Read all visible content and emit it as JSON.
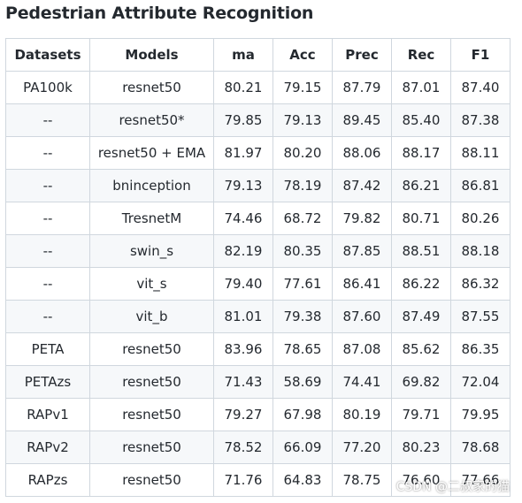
{
  "title": "Pedestrian Attribute Recognition",
  "table": {
    "headers": [
      "Datasets",
      "Models",
      "ma",
      "Acc",
      "Prec",
      "Rec",
      "F1"
    ],
    "rows": [
      [
        "PA100k",
        "resnet50",
        "80.21",
        "79.15",
        "87.79",
        "87.01",
        "87.40"
      ],
      [
        "--",
        "resnet50*",
        "79.85",
        "79.13",
        "89.45",
        "85.40",
        "87.38"
      ],
      [
        "--",
        "resnet50 + EMA",
        "81.97",
        "80.20",
        "88.06",
        "88.17",
        "88.11"
      ],
      [
        "--",
        "bninception",
        "79.13",
        "78.19",
        "87.42",
        "86.21",
        "86.81"
      ],
      [
        "--",
        "TresnetM",
        "74.46",
        "68.72",
        "79.82",
        "80.71",
        "80.26"
      ],
      [
        "--",
        "swin_s",
        "82.19",
        "80.35",
        "87.85",
        "88.51",
        "88.18"
      ],
      [
        "--",
        "vit_s",
        "79.40",
        "77.61",
        "86.41",
        "86.22",
        "86.32"
      ],
      [
        "--",
        "vit_b",
        "81.01",
        "79.38",
        "87.60",
        "87.49",
        "87.55"
      ],
      [
        "PETA",
        "resnet50",
        "83.96",
        "78.65",
        "87.08",
        "85.62",
        "86.35"
      ],
      [
        "PETAzs",
        "resnet50",
        "71.43",
        "58.69",
        "74.41",
        "69.82",
        "72.04"
      ],
      [
        "RAPv1",
        "resnet50",
        "79.27",
        "67.98",
        "80.19",
        "79.71",
        "79.95"
      ],
      [
        "RAPv2",
        "resnet50",
        "78.52",
        "66.09",
        "77.20",
        "80.23",
        "78.68"
      ],
      [
        "RAPzs",
        "resnet50",
        "71.76",
        "64.83",
        "78.75",
        "76.60",
        "77.66"
      ]
    ]
  },
  "watermark": "CSDN @二叔家的猫"
}
